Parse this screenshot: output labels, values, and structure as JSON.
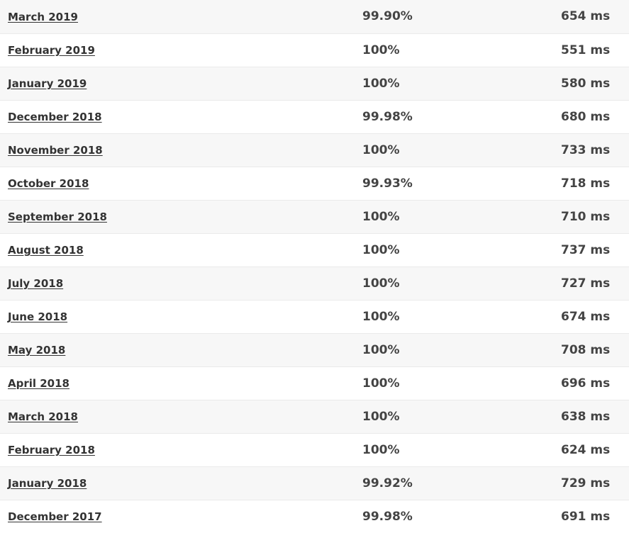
{
  "rows": [
    {
      "month": "March 2019",
      "uptime": "99.90%",
      "response": "654 ms"
    },
    {
      "month": "February 2019",
      "uptime": "100%",
      "response": "551 ms"
    },
    {
      "month": "January 2019",
      "uptime": "100%",
      "response": "580 ms"
    },
    {
      "month": "December 2018",
      "uptime": "99.98%",
      "response": "680 ms"
    },
    {
      "month": "November 2018",
      "uptime": "100%",
      "response": "733 ms"
    },
    {
      "month": "October 2018",
      "uptime": "99.93%",
      "response": "718 ms"
    },
    {
      "month": "September 2018",
      "uptime": "100%",
      "response": "710 ms"
    },
    {
      "month": "August 2018",
      "uptime": "100%",
      "response": "737 ms"
    },
    {
      "month": "July 2018",
      "uptime": "100%",
      "response": "727 ms"
    },
    {
      "month": "June 2018",
      "uptime": "100%",
      "response": "674 ms"
    },
    {
      "month": "May 2018",
      "uptime": "100%",
      "response": "708 ms"
    },
    {
      "month": "April 2018",
      "uptime": "100%",
      "response": "696 ms"
    },
    {
      "month": "March 2018",
      "uptime": "100%",
      "response": "638 ms"
    },
    {
      "month": "February 2018",
      "uptime": "100%",
      "response": "624 ms"
    },
    {
      "month": "January 2018",
      "uptime": "99.92%",
      "response": "729 ms"
    },
    {
      "month": "December 2017",
      "uptime": "99.98%",
      "response": "691 ms"
    }
  ]
}
